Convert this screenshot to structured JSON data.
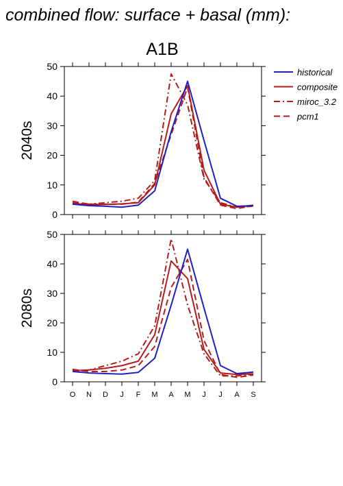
{
  "title": "combined flow: surface + basal (mm):",
  "scenario": "A1B",
  "colors": {
    "historical": "#1f1fbf",
    "future": "#b31b1b"
  },
  "legend": [
    {
      "label": "historical",
      "color": "#1f1fbf",
      "dash": "solid"
    },
    {
      "label": "composite",
      "color": "#b31b1b",
      "dash": "solid"
    },
    {
      "label": "miroc_3.2",
      "color": "#b31b1b",
      "dash": "dashdot"
    },
    {
      "label": "pcm1",
      "color": "#b31b1b",
      "dash": "dashed"
    }
  ],
  "chart_data": [
    {
      "type": "line",
      "ylabel": "2040s",
      "categories": [
        "O",
        "N",
        "D",
        "J",
        "F",
        "M",
        "A",
        "M",
        "J",
        "J",
        "A",
        "S"
      ],
      "ylim": [
        0,
        50
      ],
      "yticks": [
        0,
        10,
        20,
        30,
        40,
        50
      ],
      "series": [
        {
          "name": "historical",
          "values": [
            3.5,
            3.0,
            2.8,
            2.5,
            3.2,
            8.0,
            28.0,
            45.0,
            25.0,
            5.5,
            2.8,
            3.0
          ]
        },
        {
          "name": "composite",
          "values": [
            3.8,
            3.3,
            3.4,
            3.6,
            4.0,
            10.0,
            34.0,
            43.5,
            15.0,
            3.5,
            2.5,
            3.2
          ]
        },
        {
          "name": "miroc_3.2",
          "values": [
            4.0,
            3.5,
            4.0,
            4.5,
            5.5,
            11.5,
            47.5,
            37.0,
            12.0,
            4.0,
            2.5,
            2.8
          ]
        },
        {
          "name": "pcm1",
          "values": [
            4.5,
            3.5,
            3.5,
            3.5,
            4.2,
            10.5,
            27.0,
            43.0,
            12.5,
            3.2,
            2.0,
            3.0
          ]
        }
      ]
    },
    {
      "type": "line",
      "ylabel": "2080s",
      "categories": [
        "O",
        "N",
        "D",
        "J",
        "F",
        "M",
        "A",
        "M",
        "J",
        "J",
        "A",
        "S"
      ],
      "ylim": [
        0,
        50
      ],
      "yticks": [
        0,
        10,
        20,
        30,
        40,
        50
      ],
      "series": [
        {
          "name": "historical",
          "values": [
            3.5,
            3.0,
            2.8,
            2.6,
            3.2,
            8.0,
            26.0,
            45.0,
            25.0,
            5.5,
            2.8,
            3.3
          ]
        },
        {
          "name": "composite",
          "values": [
            3.8,
            4.0,
            4.6,
            5.5,
            7.0,
            16.0,
            41.0,
            35.0,
            11.0,
            3.0,
            2.5,
            2.7
          ]
        },
        {
          "name": "miroc_3.2",
          "values": [
            3.5,
            4.0,
            5.5,
            7.0,
            9.5,
            19.0,
            48.5,
            26.0,
            9.5,
            2.0,
            2.0,
            2.5
          ]
        },
        {
          "name": "pcm1",
          "values": [
            4.2,
            3.5,
            3.5,
            4.0,
            5.5,
            12.0,
            32.0,
            41.5,
            14.0,
            2.5,
            1.5,
            2.3
          ]
        }
      ]
    }
  ]
}
